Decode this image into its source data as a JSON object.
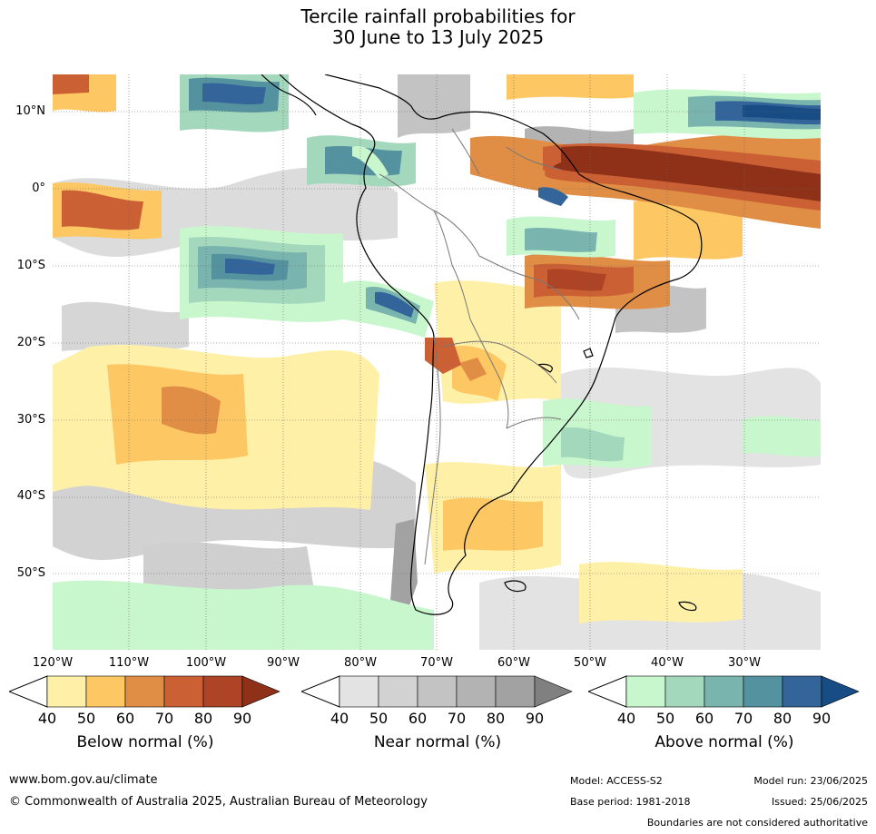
{
  "title_line1": "Tercile rainfall probabilities for",
  "title_line2": "30 June to 13 July 2025",
  "lat_labels": [
    "10°N",
    "0°",
    "10°S",
    "20°S",
    "30°S",
    "40°S",
    "50°S"
  ],
  "lon_labels": [
    "120°W",
    "110°W",
    "100°W",
    "90°W",
    "80°W",
    "70°W",
    "60°W",
    "50°W",
    "40°W",
    "30°W"
  ],
  "colorbars": [
    {
      "name": "below",
      "title": "Below normal (%)",
      "ticks": [
        "40",
        "50",
        "60",
        "70",
        "80",
        "90"
      ],
      "colors": [
        "#fff0a8",
        "#fdc864",
        "#e08e45",
        "#cb6034",
        "#ac4425",
        "#8e3118"
      ]
    },
    {
      "name": "near",
      "title": "Near normal (%)",
      "ticks": [
        "40",
        "50",
        "60",
        "70",
        "80",
        "90"
      ],
      "colors": [
        "#e3e3e3",
        "#d2d2d2",
        "#c3c3c3",
        "#b3b3b3",
        "#a2a2a2",
        "#808080"
      ]
    },
    {
      "name": "above",
      "title": "Above normal (%)",
      "ticks": [
        "40",
        "50",
        "60",
        "70",
        "80",
        "90"
      ],
      "colors": [
        "#c9f7cd",
        "#a4d8bd",
        "#7ab4ae",
        "#5592a0",
        "#33659a",
        "#174c85"
      ]
    }
  ],
  "footer": {
    "url": "www.bom.gov.au/climate",
    "copyright": "© Commonwealth of Australia 2025, Australian Bureau of Meteorology",
    "model": "Model: ACCESS-S2",
    "base_period": "Base period: 1981-2018",
    "model_run": "Model run: 23/06/2025",
    "issued": "Issued: 25/06/2025",
    "disclaimer": "Boundaries are not considered authoritative"
  }
}
